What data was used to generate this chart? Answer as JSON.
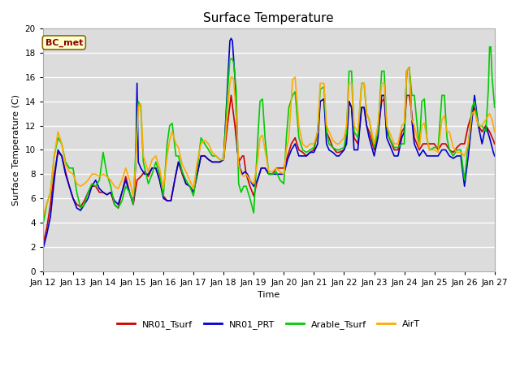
{
  "title": "Surface Temperature",
  "ylabel": "Surface Temperature (C)",
  "xlabel": "Time",
  "annotation": "BC_met",
  "ylim": [
    0,
    20
  ],
  "xlim": [
    0,
    360
  ],
  "xtick_labels": [
    "Jan 12",
    "Jan 13",
    "Jan 14",
    "Jan 15",
    "Jan 16",
    "Jan 17",
    "Jan 18",
    "Jan 19",
    "Jan 20",
    "Jan 21",
    "Jan 22",
    "Jan 23",
    "Jan 24",
    "Jan 25",
    "Jan 26",
    "Jan 27"
  ],
  "xtick_positions": [
    0,
    24,
    48,
    72,
    96,
    120,
    144,
    168,
    192,
    216,
    240,
    264,
    288,
    312,
    336,
    360
  ],
  "series": {
    "NR01_Tsurf": {
      "color": "#cc0000",
      "linewidth": 1.2
    },
    "NR01_PRT": {
      "color": "#0000cc",
      "linewidth": 1.2
    },
    "Arable_Tsurf": {
      "color": "#00cc00",
      "linewidth": 1.2
    },
    "AirT": {
      "color": "#ffaa00",
      "linewidth": 1.2
    }
  },
  "legend_names": [
    "NR01_Tsurf",
    "NR01_PRT",
    "Arable_Tsurf",
    "AirT"
  ],
  "legend_colors": [
    "#cc0000",
    "#0000cc",
    "#00cc00",
    "#ffaa00"
  ],
  "figure_bg": "#ffffff",
  "plot_bg_color": "#dcdcdc",
  "grid_color": "#ffffff",
  "title_fontsize": 11,
  "label_fontsize": 8,
  "tick_fontsize": 7.5
}
